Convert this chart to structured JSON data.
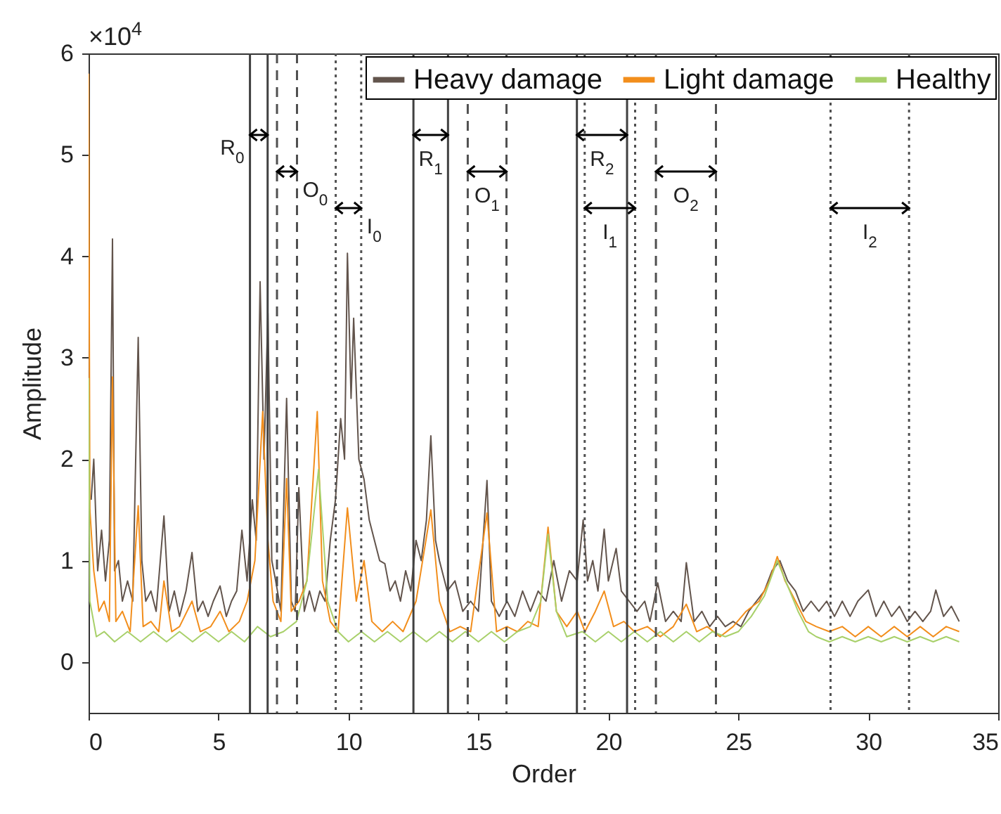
{
  "chart_data": {
    "type": "line",
    "xlabel": "Order",
    "ylabel": "Amplitude",
    "xlim": [
      0,
      35
    ],
    "xticks": [
      0,
      5,
      10,
      15,
      20,
      25,
      30,
      35
    ],
    "ylim": [
      -0.5,
      6
    ],
    "yticks": [
      0,
      1,
      2,
      3,
      4,
      5,
      6
    ],
    "grid": false,
    "legend": "top right",
    "marker": "none",
    "line_style": "solid",
    "series": [
      {
        "name": "Heavy damage",
        "color": "#62544c",
        "x": [
          0.1,
          0.2,
          0.35,
          0.5,
          0.65,
          0.8,
          0.92,
          1.0,
          1.15,
          1.3,
          1.5,
          1.7,
          1.91,
          2.05,
          2.2,
          2.4,
          2.6,
          2.9,
          3.1,
          3.3,
          3.5,
          3.75,
          3.98,
          4.2,
          4.4,
          4.6,
          4.8,
          5.06,
          5.3,
          5.5,
          5.7,
          5.9,
          6.1,
          6.3,
          6.45,
          6.6,
          6.75,
          6.9,
          7.05,
          7.2,
          7.4,
          7.62,
          7.8,
          7.95,
          8.09,
          8.3,
          8.5,
          8.7,
          8.9,
          9.1,
          9.3,
          9.5,
          9.7,
          9.85,
          9.96,
          10.1,
          10.2,
          10.4,
          10.6,
          10.8,
          11.0,
          11.2,
          11.4,
          11.6,
          11.8,
          12.0,
          12.2,
          12.4,
          12.6,
          12.8,
          13.0,
          13.17,
          13.35,
          13.5,
          13.8,
          14.1,
          14.4,
          14.7,
          15.0,
          15.33,
          15.5,
          15.8,
          16.1,
          16.4,
          16.7,
          17.0,
          17.3,
          17.6,
          17.9,
          18.2,
          18.5,
          18.8,
          19.03,
          19.2,
          19.4,
          19.6,
          19.84,
          20.0,
          20.3,
          20.5,
          20.8,
          21.1,
          21.4,
          21.6,
          21.9,
          22.2,
          22.5,
          22.8,
          23.0,
          23.3,
          23.6,
          23.9,
          24.2,
          24.5,
          24.8,
          25.1,
          25.4,
          25.7,
          26.0,
          26.3,
          26.6,
          26.9,
          27.2,
          27.5,
          27.8,
          28.1,
          28.4,
          28.7,
          29.0,
          29.3,
          29.6,
          30.0,
          30.3,
          30.6,
          30.9,
          31.2,
          31.5,
          31.8,
          32.1,
          32.4,
          32.6,
          32.9,
          33.2,
          33.5
        ],
        "values": [
          1.6,
          2.0,
          0.9,
          1.3,
          0.8,
          1.2,
          4.17,
          0.9,
          1.0,
          0.6,
          0.8,
          0.6,
          3.2,
          1.0,
          0.6,
          0.7,
          0.5,
          1.44,
          0.5,
          0.7,
          0.45,
          0.7,
          1.08,
          0.5,
          0.6,
          0.45,
          0.6,
          0.75,
          0.45,
          0.6,
          0.7,
          1.3,
          0.8,
          1.6,
          1.2,
          3.75,
          2.0,
          3.44,
          1.0,
          0.8,
          0.5,
          2.6,
          0.6,
          0.5,
          1.72,
          0.5,
          0.7,
          0.5,
          0.7,
          0.6,
          1.2,
          1.6,
          2.4,
          2.0,
          4.03,
          2.6,
          3.39,
          2.0,
          1.8,
          1.4,
          1.2,
          1.0,
          0.97,
          0.7,
          0.8,
          0.6,
          0.9,
          0.7,
          1.2,
          1.0,
          1.4,
          2.23,
          1.2,
          1.0,
          0.7,
          0.8,
          0.5,
          0.6,
          0.5,
          1.79,
          0.6,
          0.45,
          0.6,
          0.45,
          0.7,
          0.5,
          0.7,
          0.6,
          1.0,
          0.6,
          0.9,
          0.8,
          1.4,
          0.8,
          1.0,
          0.7,
          1.31,
          0.8,
          1.12,
          0.7,
          0.6,
          0.5,
          0.6,
          0.4,
          0.78,
          0.4,
          0.5,
          0.4,
          0.98,
          0.4,
          0.5,
          0.35,
          0.45,
          0.35,
          0.4,
          0.35,
          0.5,
          0.6,
          0.7,
          0.9,
          1.0,
          0.8,
          0.7,
          0.5,
          0.6,
          0.5,
          0.6,
          0.45,
          0.6,
          0.45,
          0.6,
          0.71,
          0.45,
          0.6,
          0.45,
          0.55,
          0.4,
          0.5,
          0.4,
          0.5,
          0.71,
          0.45,
          0.55,
          0.4
        ]
      },
      {
        "name": "Light damage",
        "color": "#f28e1c",
        "x": [
          0,
          0.05,
          0.2,
          0.4,
          0.6,
          0.8,
          0.92,
          1.05,
          1.3,
          1.6,
          1.91,
          2.1,
          2.4,
          2.7,
          2.9,
          3.2,
          3.5,
          3.98,
          4.3,
          4.7,
          5.06,
          5.4,
          5.8,
          6.1,
          6.4,
          6.7,
          6.9,
          7.1,
          7.4,
          7.62,
          7.8,
          8.1,
          8.4,
          8.8,
          9.0,
          9.3,
          9.6,
          9.96,
          10.3,
          10.6,
          10.9,
          11.3,
          11.7,
          12.1,
          12.6,
          13.17,
          13.5,
          13.9,
          14.3,
          14.7,
          15.33,
          15.7,
          16.1,
          16.5,
          16.9,
          17.3,
          17.68,
          18.0,
          18.4,
          18.8,
          19.1,
          19.5,
          19.84,
          20.2,
          20.6,
          21.0,
          21.5,
          22.0,
          22.5,
          23.0,
          23.4,
          23.8,
          24.3,
          24.8,
          25.3,
          25.8,
          26.2,
          26.5,
          26.8,
          27.2,
          27.6,
          28.0,
          28.5,
          29.0,
          29.5,
          30.0,
          30.5,
          31.0,
          31.5,
          32.0,
          32.5,
          33.0,
          33.5
        ],
        "values": [
          5.8,
          1.5,
          0.9,
          0.5,
          0.6,
          0.4,
          2.81,
          0.4,
          0.5,
          0.3,
          1.54,
          0.35,
          0.4,
          0.3,
          0.8,
          0.3,
          0.35,
          0.6,
          0.3,
          0.35,
          0.5,
          0.3,
          0.4,
          0.6,
          1.0,
          2.47,
          1.2,
          0.6,
          0.4,
          1.81,
          0.5,
          0.6,
          0.8,
          2.47,
          0.8,
          0.4,
          0.3,
          1.52,
          0.6,
          1.0,
          0.4,
          0.3,
          0.4,
          0.3,
          0.6,
          1.5,
          0.6,
          0.3,
          0.35,
          0.3,
          1.47,
          0.3,
          0.35,
          0.3,
          0.4,
          0.35,
          1.33,
          0.5,
          0.35,
          0.5,
          0.3,
          0.5,
          0.7,
          0.35,
          0.4,
          0.3,
          0.35,
          0.25,
          0.35,
          0.57,
          0.3,
          0.35,
          0.25,
          0.35,
          0.5,
          0.6,
          0.8,
          1.04,
          0.8,
          0.6,
          0.4,
          0.35,
          0.3,
          0.35,
          0.25,
          0.35,
          0.25,
          0.35,
          0.25,
          0.35,
          0.25,
          0.35,
          0.3
        ]
      },
      {
        "name": "Healthy",
        "color": "#a8d06a",
        "x": [
          0,
          0.05,
          0.3,
          0.6,
          1.0,
          1.5,
          2.0,
          2.5,
          3.0,
          3.5,
          4.0,
          4.5,
          5.0,
          5.5,
          6.0,
          6.5,
          7.0,
          7.5,
          8.0,
          8.4,
          8.85,
          9.2,
          9.6,
          10.0,
          10.5,
          11.0,
          11.5,
          12.0,
          12.5,
          13.0,
          13.5,
          14.0,
          14.5,
          15.0,
          15.5,
          16.0,
          16.5,
          17.0,
          17.4,
          17.68,
          18.0,
          18.4,
          19.0,
          19.5,
          20.0,
          20.5,
          21.0,
          21.5,
          22.0,
          22.5,
          23.0,
          23.5,
          24.0,
          24.5,
          25.0,
          25.5,
          26.0,
          26.5,
          26.9,
          27.3,
          27.7,
          28.0,
          28.5,
          29.0,
          29.5,
          30.0,
          30.5,
          31.0,
          31.5,
          32.0,
          32.5,
          33.0,
          33.5
        ],
        "values": [
          2.8,
          0.6,
          0.25,
          0.3,
          0.2,
          0.3,
          0.2,
          0.3,
          0.2,
          0.3,
          0.2,
          0.3,
          0.2,
          0.3,
          0.2,
          0.35,
          0.25,
          0.3,
          0.4,
          0.8,
          1.9,
          0.6,
          0.3,
          0.2,
          0.3,
          0.2,
          0.3,
          0.2,
          0.3,
          0.2,
          0.3,
          0.2,
          0.3,
          0.2,
          0.3,
          0.2,
          0.3,
          0.35,
          0.6,
          1.26,
          0.5,
          0.25,
          0.3,
          0.2,
          0.3,
          0.2,
          0.3,
          0.2,
          0.3,
          0.2,
          0.3,
          0.2,
          0.3,
          0.25,
          0.3,
          0.45,
          0.65,
          1.0,
          0.75,
          0.5,
          0.3,
          0.25,
          0.2,
          0.25,
          0.2,
          0.25,
          0.2,
          0.25,
          0.2,
          0.25,
          0.2,
          0.25,
          0.2
        ]
      }
    ],
    "ref_lines": [
      {
        "axis": "x",
        "value": 6.21,
        "line_style": "solid",
        "color": "#404040"
      },
      {
        "axis": "x",
        "value": 6.89,
        "line_style": "solid",
        "color": "#404040"
      },
      {
        "axis": "x",
        "value": 7.25,
        "line_style": "dashed",
        "color": "#505050"
      },
      {
        "axis": "x",
        "value": 8.02,
        "line_style": "dashed",
        "color": "#505050"
      },
      {
        "axis": "x",
        "value": 9.51,
        "line_style": "dotted",
        "color": "#505050"
      },
      {
        "axis": "x",
        "value": 10.49,
        "line_style": "dotted",
        "color": "#505050"
      },
      {
        "axis": "x",
        "value": 12.5,
        "line_style": "solid",
        "color": "#404040"
      },
      {
        "axis": "x",
        "value": 13.83,
        "line_style": "solid",
        "color": "#404040"
      },
      {
        "axis": "x",
        "value": 14.59,
        "line_style": "dashed",
        "color": "#505050"
      },
      {
        "axis": "x",
        "value": 16.08,
        "line_style": "dashed",
        "color": "#505050"
      },
      {
        "axis": "x",
        "value": 18.79,
        "line_style": "solid",
        "color": "#404040"
      },
      {
        "axis": "x",
        "value": 19.09,
        "line_style": "dotted",
        "color": "#505050"
      },
      {
        "axis": "x",
        "value": 20.72,
        "line_style": "solid",
        "color": "#404040"
      },
      {
        "axis": "x",
        "value": 21.03,
        "line_style": "dotted",
        "color": "#505050"
      },
      {
        "axis": "x",
        "value": 21.83,
        "line_style": "dashed",
        "color": "#505050"
      },
      {
        "axis": "x",
        "value": 24.14,
        "line_style": "dashed",
        "color": "#505050"
      },
      {
        "axis": "x",
        "value": 28.55,
        "line_style": "dotted",
        "color": "#505050"
      },
      {
        "axis": "x",
        "value": 31.57,
        "line_style": "dotted",
        "color": "#505050"
      }
    ],
    "annotations": [
      "×10$^{4}$",
      "R$_{0}$",
      "O$_{0}$",
      "I$_{0}$",
      "R$_{1}$",
      "O$_{1}$",
      "R$_{2}$",
      "I$_{1}$",
      "O$_{2}$",
      "I$_{2}$"
    ]
  }
}
